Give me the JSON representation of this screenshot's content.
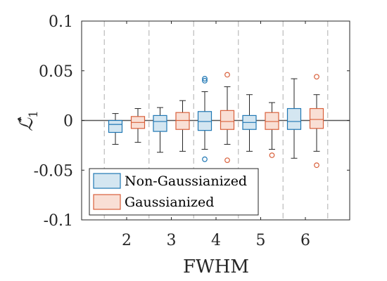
{
  "chart_data": {
    "type": "box",
    "title": "",
    "xlabel": "FWHM",
    "ylabel": "ℒ̂",
    "ylabel_subscript": "1",
    "ylim": [
      -0.1,
      0.1
    ],
    "yticks": [
      -0.1,
      -0.05,
      0,
      0.05,
      0.1
    ],
    "ytick_labels": [
      "-0.1",
      "-0.05",
      "0",
      "0.05",
      "0.1"
    ],
    "categories": [
      "2",
      "3",
      "4",
      "5",
      "6"
    ],
    "reference_line": 0,
    "grid": "dashed vertical separators between categories",
    "legend_position": "bottom-left",
    "colors": {
      "series_0_edge": "#1f77b4",
      "series_0_fill": "#d4e6f1",
      "series_1_edge": "#d9603b",
      "series_1_fill": "#f9dfd5",
      "reference_line": "#555555",
      "separator": "#bbbbbb"
    },
    "series": [
      {
        "name": "Non-Gaussianized",
        "boxes": [
          {
            "category": "2",
            "whisker_low": -0.024,
            "q1": -0.012,
            "median": -0.004,
            "q3": 0.0,
            "whisker_high": 0.007,
            "outliers": []
          },
          {
            "category": "3",
            "whisker_low": -0.032,
            "q1": -0.011,
            "median": -0.001,
            "q3": 0.005,
            "whisker_high": 0.013,
            "outliers": []
          },
          {
            "category": "4",
            "whisker_low": -0.029,
            "q1": -0.01,
            "median": -0.001,
            "q3": 0.009,
            "whisker_high": 0.029,
            "outliers": [
              0.042,
              0.04,
              -0.039
            ]
          },
          {
            "category": "5",
            "whisker_low": -0.031,
            "q1": -0.009,
            "median": -0.002,
            "q3": 0.005,
            "whisker_high": 0.026,
            "outliers": []
          },
          {
            "category": "6",
            "whisker_low": -0.038,
            "q1": -0.009,
            "median": -0.001,
            "q3": 0.012,
            "whisker_high": 0.042,
            "outliers": []
          }
        ]
      },
      {
        "name": "Gaussianized",
        "boxes": [
          {
            "category": "2",
            "whisker_low": -0.022,
            "q1": -0.008,
            "median": -0.002,
            "q3": 0.004,
            "whisker_high": 0.012,
            "outliers": []
          },
          {
            "category": "3",
            "whisker_low": -0.031,
            "q1": -0.009,
            "median": 0.0,
            "q3": 0.008,
            "whisker_high": 0.02,
            "outliers": []
          },
          {
            "category": "4",
            "whisker_low": -0.024,
            "q1": -0.009,
            "median": -0.001,
            "q3": 0.01,
            "whisker_high": 0.034,
            "outliers": [
              0.046,
              -0.04
            ]
          },
          {
            "category": "5",
            "whisker_low": -0.029,
            "q1": -0.009,
            "median": -0.001,
            "q3": 0.008,
            "whisker_high": 0.018,
            "outliers": [
              -0.035
            ]
          },
          {
            "category": "6",
            "whisker_low": -0.031,
            "q1": -0.008,
            "median": 0.001,
            "q3": 0.012,
            "whisker_high": 0.026,
            "outliers": [
              0.044,
              -0.045
            ]
          }
        ]
      }
    ]
  }
}
